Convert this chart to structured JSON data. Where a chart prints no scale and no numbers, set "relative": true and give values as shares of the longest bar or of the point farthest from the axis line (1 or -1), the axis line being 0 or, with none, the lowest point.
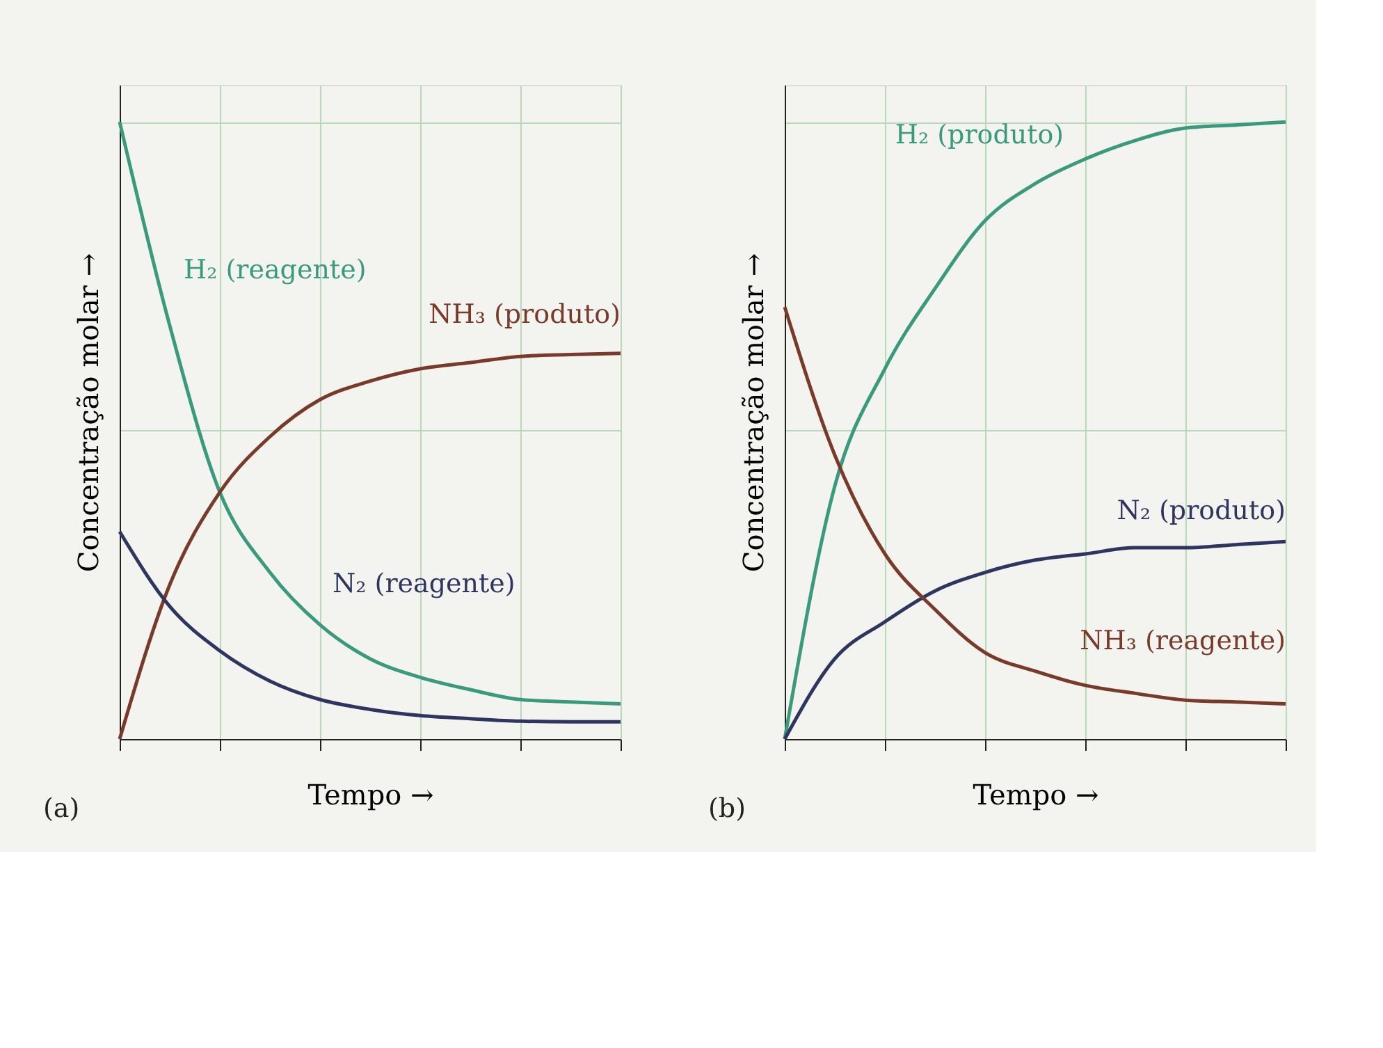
{
  "chart_data": [
    {
      "type": "line",
      "relative": true,
      "grid": true,
      "xlabel": "Tempo →",
      "ylabel": "Concentração molar →",
      "tick_labels": false,
      "annotations": [
        "(a)"
      ],
      "categories": [
        null,
        null,
        null,
        null,
        null,
        null,
        null,
        null,
        null,
        null,
        null
      ],
      "series": [
        {
          "name": "H₂ (reagente)",
          "color": "#3a9a7e",
          "values": [
            1,
            0.67,
            0.4,
            0.27,
            0.185,
            0.13,
            0.1,
            0.08,
            0.064,
            0.06,
            0.057
          ]
        },
        {
          "name": "NH₃ (produto)",
          "color": "#7a3a2a",
          "values": [
            0,
            0.25,
            0.4,
            0.49,
            0.55,
            0.58,
            0.6,
            0.61,
            0.62,
            0.623,
            0.625
          ]
        },
        {
          "name": "N₂ (reagente)",
          "color": "#2e3560",
          "values": [
            0.336,
            0.215,
            0.143,
            0.094,
            0.064,
            0.048,
            0.038,
            0.033,
            0.029,
            0.028,
            0.028
          ]
        }
      ]
    },
    {
      "type": "line",
      "relative": true,
      "grid": true,
      "xlabel": "Tempo →",
      "ylabel": "Concentração molar →",
      "tick_labels": false,
      "annotations": [
        "(b)"
      ],
      "categories": [
        null,
        null,
        null,
        null,
        null,
        null,
        null,
        null,
        null,
        null,
        null
      ],
      "series": [
        {
          "name": "H₂ (produto)",
          "color": "#3a9a7e",
          "values": [
            0,
            0.41,
            0.6,
            0.73,
            0.84,
            0.9,
            0.94,
            0.97,
            0.99,
            0.995,
            1
          ]
        },
        {
          "name": "N₂ (produto)",
          "color": "#2e3560",
          "values": [
            0,
            0.13,
            0.19,
            0.24,
            0.27,
            0.29,
            0.3,
            0.31,
            0.31,
            0.315,
            0.32
          ]
        },
        {
          "name": "NH₃ (reagente)",
          "color": "#7a3a2a",
          "values": [
            0.7,
            0.46,
            0.3,
            0.21,
            0.14,
            0.11,
            0.087,
            0.074,
            0.063,
            0.06,
            0.057
          ]
        }
      ]
    }
  ]
}
